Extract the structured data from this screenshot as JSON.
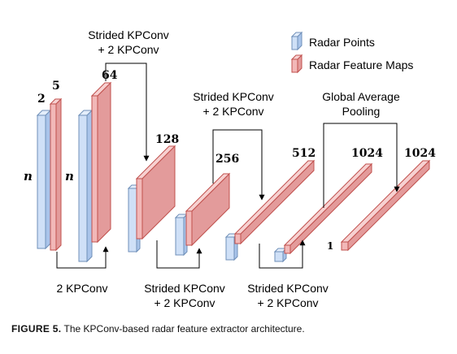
{
  "legend": {
    "radar_points": "Radar Points",
    "radar_feature_maps": "Radar Feature Maps",
    "blue_fill": "#cfe0f7",
    "blue_stroke": "#6f8fb8",
    "red_fill": "#f2b8b8",
    "red_stroke": "#c0504d"
  },
  "labels": {
    "dim_2": "2",
    "dim_5": "5",
    "dim_64": "64",
    "dim_128": "128",
    "dim_256": "256",
    "dim_512": "512",
    "dim_1024a": "1024",
    "dim_1024b": "1024",
    "n_a": "n",
    "n_b": "n",
    "one": "1"
  },
  "ops": {
    "top1_line1": "Strided KPConv",
    "top1_line2": "+ 2 KPConv",
    "top2_line1": "Strided KPConv",
    "top2_line2": "+ 2 KPConv",
    "top3_line1": "Global Average",
    "top3_line2": "Pooling",
    "bot1": "2 KPConv",
    "bot2_line1": "Strided KPConv",
    "bot2_line2": "+ 2 KPConv",
    "bot3_line1": "Strided KPConv",
    "bot3_line2": "+ 2 KPConv"
  },
  "caption": {
    "figure": "FIGURE 5.",
    "text": "The KPConv-based radar feature extractor architecture."
  }
}
